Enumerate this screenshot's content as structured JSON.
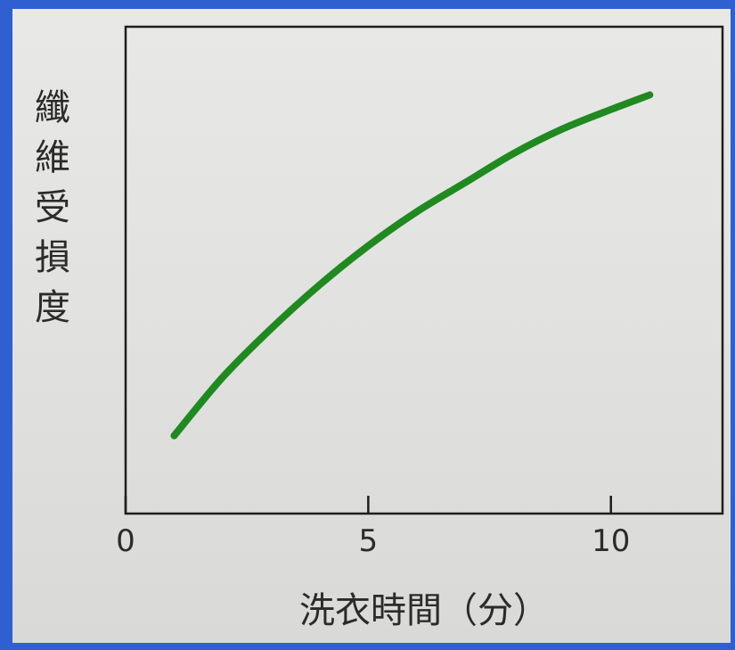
{
  "chart_data": {
    "type": "line",
    "title": "",
    "xlabel": "洗衣時間（分）",
    "ylabel": "纖維受損度",
    "xlim": [
      0,
      12.3
    ],
    "ylim": [
      0,
      1
    ],
    "x_ticks": [
      0,
      5,
      10
    ],
    "x_tick_labels": [
      "0",
      "5",
      "10"
    ],
    "grid": false,
    "legend": "none",
    "series": [
      {
        "color": "#1f8a1f",
        "x": [
          1,
          2,
          3,
          4,
          5,
          6,
          7,
          8,
          9,
          10,
          10.8
        ],
        "y": [
          0.16,
          0.28,
          0.38,
          0.47,
          0.55,
          0.62,
          0.68,
          0.74,
          0.79,
          0.83,
          0.86
        ]
      }
    ]
  }
}
